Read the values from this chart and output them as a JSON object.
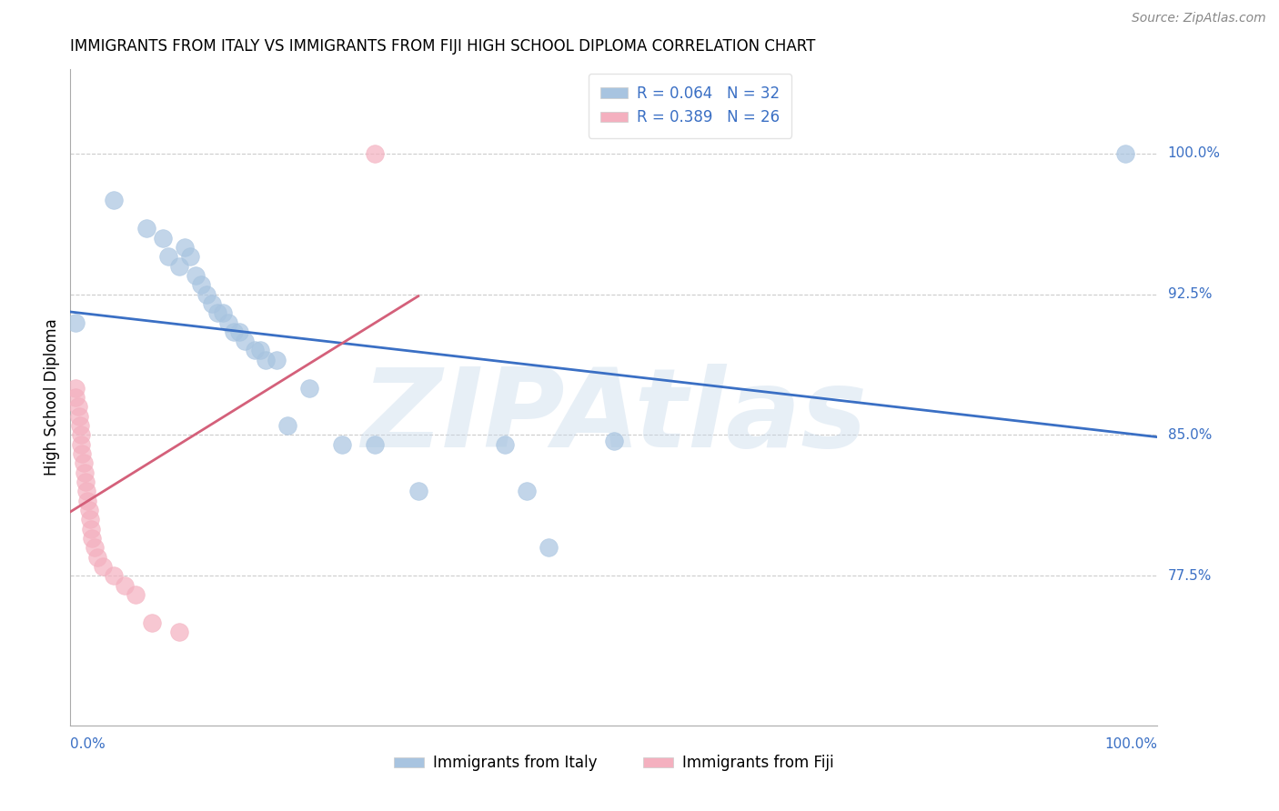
{
  "title": "IMMIGRANTS FROM ITALY VS IMMIGRANTS FROM FIJI HIGH SCHOOL DIPLOMA CORRELATION CHART",
  "source": "Source: ZipAtlas.com",
  "ylabel": "High School Diploma",
  "yticks": [
    0.775,
    0.85,
    0.925,
    1.0
  ],
  "ytick_labels": [
    "77.5%",
    "85.0%",
    "92.5%",
    "100.0%"
  ],
  "xlim": [
    0.0,
    1.0
  ],
  "ylim": [
    0.695,
    1.045
  ],
  "legend_r1": "R = 0.064",
  "legend_n1": "N = 32",
  "legend_r2": "R = 0.389",
  "legend_n2": "N = 26",
  "italy_color": "#a8c4e0",
  "fiji_color": "#f4b0bf",
  "italy_line_color": "#3a6fc4",
  "fiji_line_color": "#d4607a",
  "watermark": "ZIPAtlas",
  "italy_x": [
    0.005,
    0.04,
    0.07,
    0.085,
    0.09,
    0.1,
    0.105,
    0.11,
    0.115,
    0.12,
    0.125,
    0.13,
    0.135,
    0.14,
    0.145,
    0.15,
    0.155,
    0.16,
    0.17,
    0.175,
    0.18,
    0.19,
    0.2,
    0.22,
    0.25,
    0.28,
    0.32,
    0.4,
    0.42,
    0.44,
    0.5,
    0.97
  ],
  "italy_y": [
    0.91,
    0.975,
    0.96,
    0.955,
    0.945,
    0.94,
    0.95,
    0.945,
    0.935,
    0.93,
    0.925,
    0.92,
    0.915,
    0.915,
    0.91,
    0.905,
    0.905,
    0.9,
    0.895,
    0.895,
    0.89,
    0.89,
    0.855,
    0.875,
    0.845,
    0.845,
    0.82,
    0.845,
    0.82,
    0.79,
    0.847,
    1.0
  ],
  "fiji_x": [
    0.005,
    0.005,
    0.007,
    0.008,
    0.009,
    0.01,
    0.01,
    0.011,
    0.012,
    0.013,
    0.014,
    0.015,
    0.016,
    0.017,
    0.018,
    0.019,
    0.02,
    0.022,
    0.025,
    0.03,
    0.04,
    0.05,
    0.06,
    0.075,
    0.1,
    0.28
  ],
  "fiji_y": [
    0.875,
    0.87,
    0.865,
    0.86,
    0.855,
    0.85,
    0.845,
    0.84,
    0.835,
    0.83,
    0.825,
    0.82,
    0.815,
    0.81,
    0.805,
    0.8,
    0.795,
    0.79,
    0.785,
    0.78,
    0.775,
    0.77,
    0.765,
    0.75,
    0.745,
    1.0
  ]
}
